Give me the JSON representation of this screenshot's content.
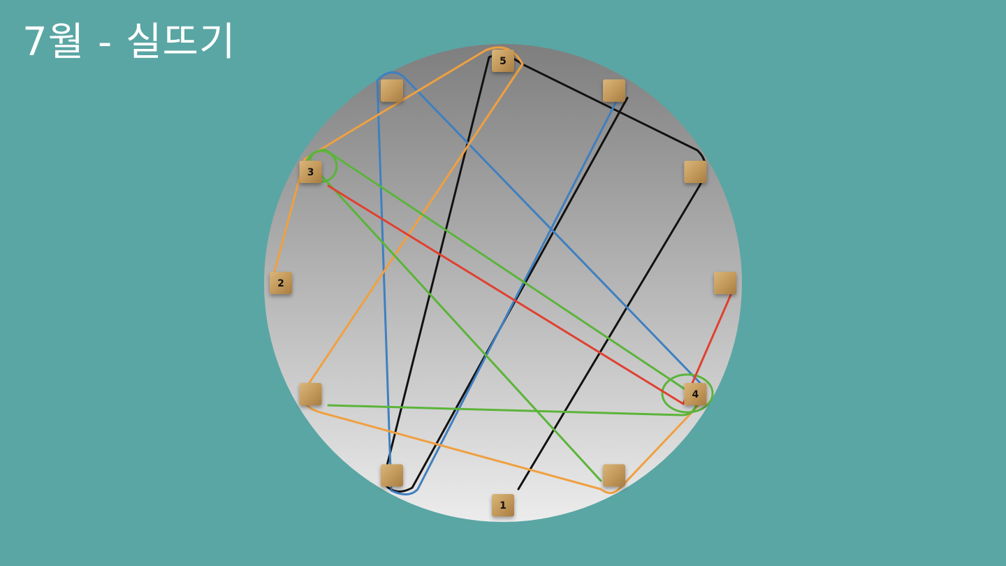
{
  "slide": {
    "title": "7월 - 실뜨기"
  },
  "pegs": [
    {
      "id": "peg-5",
      "label": "5"
    },
    {
      "id": "peg-top-right",
      "label": ""
    },
    {
      "id": "peg-upper-right",
      "label": ""
    },
    {
      "id": "peg-right",
      "label": ""
    },
    {
      "id": "peg-4",
      "label": "4"
    },
    {
      "id": "peg-bottom-right",
      "label": ""
    },
    {
      "id": "peg-1",
      "label": "1"
    },
    {
      "id": "peg-bottom-left",
      "label": ""
    },
    {
      "id": "peg-lower-left",
      "label": ""
    },
    {
      "id": "peg-2",
      "label": "2"
    },
    {
      "id": "peg-3",
      "label": "3"
    },
    {
      "id": "peg-top-left",
      "label": ""
    }
  ],
  "strings": [
    {
      "name": "black",
      "color": "#111111"
    },
    {
      "name": "blue",
      "color": "#3f7fc0"
    },
    {
      "name": "orange",
      "color": "#f0a040"
    },
    {
      "name": "green",
      "color": "#5bb43a"
    },
    {
      "name": "red",
      "color": "#e04030"
    }
  ],
  "colors": {
    "background": "#5aa6a4",
    "board_top": "#7e7e7e",
    "board_bottom": "#e9e9e9",
    "peg_wood": "#c9a063"
  }
}
